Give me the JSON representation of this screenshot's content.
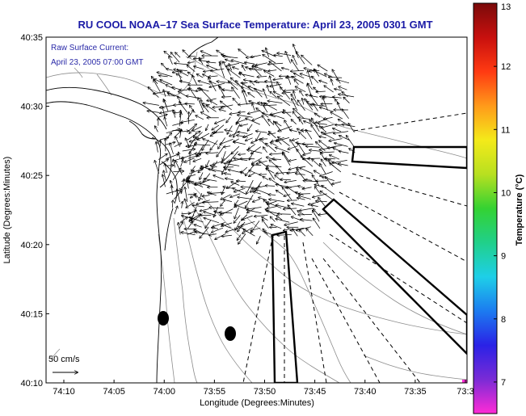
{
  "title": "RU COOL  NOAA–17  Sea Surface Temperature:  April 23, 2005 0301 GMT",
  "annotation": {
    "line1": "Raw Surface Current:",
    "line2": "April 23, 2005 07:00 GMT"
  },
  "scale": {
    "label": "50 cm/s"
  },
  "x_axis": {
    "label": "Longitude (Degrees:Minutes)",
    "ticks": [
      "74:10",
      "74:05",
      "74:00",
      "73:55",
      "73:50",
      "73:45",
      "73:40",
      "73:35",
      "73:3"
    ]
  },
  "y_axis": {
    "label": "Latitude (Degrees:Minutes)",
    "ticks": [
      "40:35",
      "40:30",
      "40:25",
      "40:20",
      "40:15",
      "40:10"
    ]
  },
  "colorbar": {
    "label": "Temperature (°C)",
    "ticks": [
      "13",
      "12",
      "11",
      "10",
      "9",
      "8",
      "7"
    ],
    "range": [
      6.5,
      13
    ],
    "colors": [
      "#ff2bd6",
      "#7a2bd6",
      "#2a22e6",
      "#1c7bf0",
      "#1ecfe8",
      "#20d08a",
      "#34d232",
      "#b8e020",
      "#f4ea1a",
      "#ff9a1a",
      "#ff3a12",
      "#c8100e",
      "#7a0a0a"
    ]
  }
}
